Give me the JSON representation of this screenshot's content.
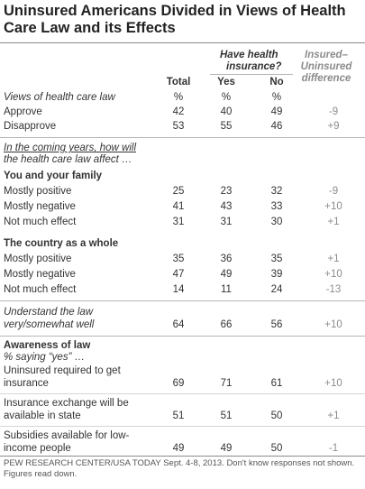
{
  "title": "Uninsured Americans Divided in Views of Health Care Law and its Effects",
  "header": {
    "group_label_line1": "Have health",
    "group_label_line2": "insurance?",
    "diff_line1": "Insured–",
    "diff_line2": "Uninsured",
    "diff_line3": "difference",
    "col_total": "Total",
    "col_yes": "Yes",
    "col_no": "No"
  },
  "views": {
    "label": "Views of health care law",
    "pct": "%",
    "rows": [
      {
        "label": "Approve",
        "total": "42",
        "yes": "40",
        "no": "49",
        "diff": "-9"
      },
      {
        "label": "Disapprove",
        "total": "53",
        "yes": "55",
        "no": "46",
        "diff": "+9"
      }
    ]
  },
  "coming": {
    "line1": "In the coming years, how will",
    "line2": "the health care law affect …"
  },
  "family": {
    "heading": "You and your family",
    "rows": [
      {
        "label": "Mostly positive",
        "total": "25",
        "yes": "23",
        "no": "32",
        "diff": "-9"
      },
      {
        "label": "Mostly negative",
        "total": "41",
        "yes": "43",
        "no": "33",
        "diff": "+10"
      },
      {
        "label": "Not much effect",
        "total": "31",
        "yes": "31",
        "no": "30",
        "diff": "+1"
      }
    ]
  },
  "country": {
    "heading": "The country as a whole",
    "rows": [
      {
        "label": "Mostly positive",
        "total": "35",
        "yes": "36",
        "no": "35",
        "diff": "+1"
      },
      {
        "label": "Mostly negative",
        "total": "47",
        "yes": "49",
        "no": "39",
        "diff": "+10"
      },
      {
        "label": "Not much effect",
        "total": "14",
        "yes": "11",
        "no": "24",
        "diff": "-13"
      }
    ]
  },
  "understand": {
    "line1": "Understand the law",
    "line2": "very/somewhat well",
    "total": "64",
    "yes": "66",
    "no": "56",
    "diff": "+10"
  },
  "awareness": {
    "heading": "Awareness of law",
    "sub": "% saying “yes” …",
    "rows": [
      {
        "line1": "Uninsured required to get",
        "line2": "insurance",
        "total": "69",
        "yes": "71",
        "no": "61",
        "diff": "+10"
      },
      {
        "line1": "Insurance exchange will be",
        "line2": "available in state",
        "total": "51",
        "yes": "51",
        "no": "50",
        "diff": "+1"
      },
      {
        "line1": "Subsidies available for low-",
        "line2": "income people",
        "total": "49",
        "yes": "49",
        "no": "50",
        "diff": "-1"
      }
    ]
  },
  "source": "PEW RESEARCH CENTER/USA TODAY Sept. 4-8, 2013. Don't know responses not shown. Figures read down.",
  "colors": {
    "rule": "#b5b5b5",
    "diff_text": "#8c8c8c",
    "title": "#222222"
  }
}
